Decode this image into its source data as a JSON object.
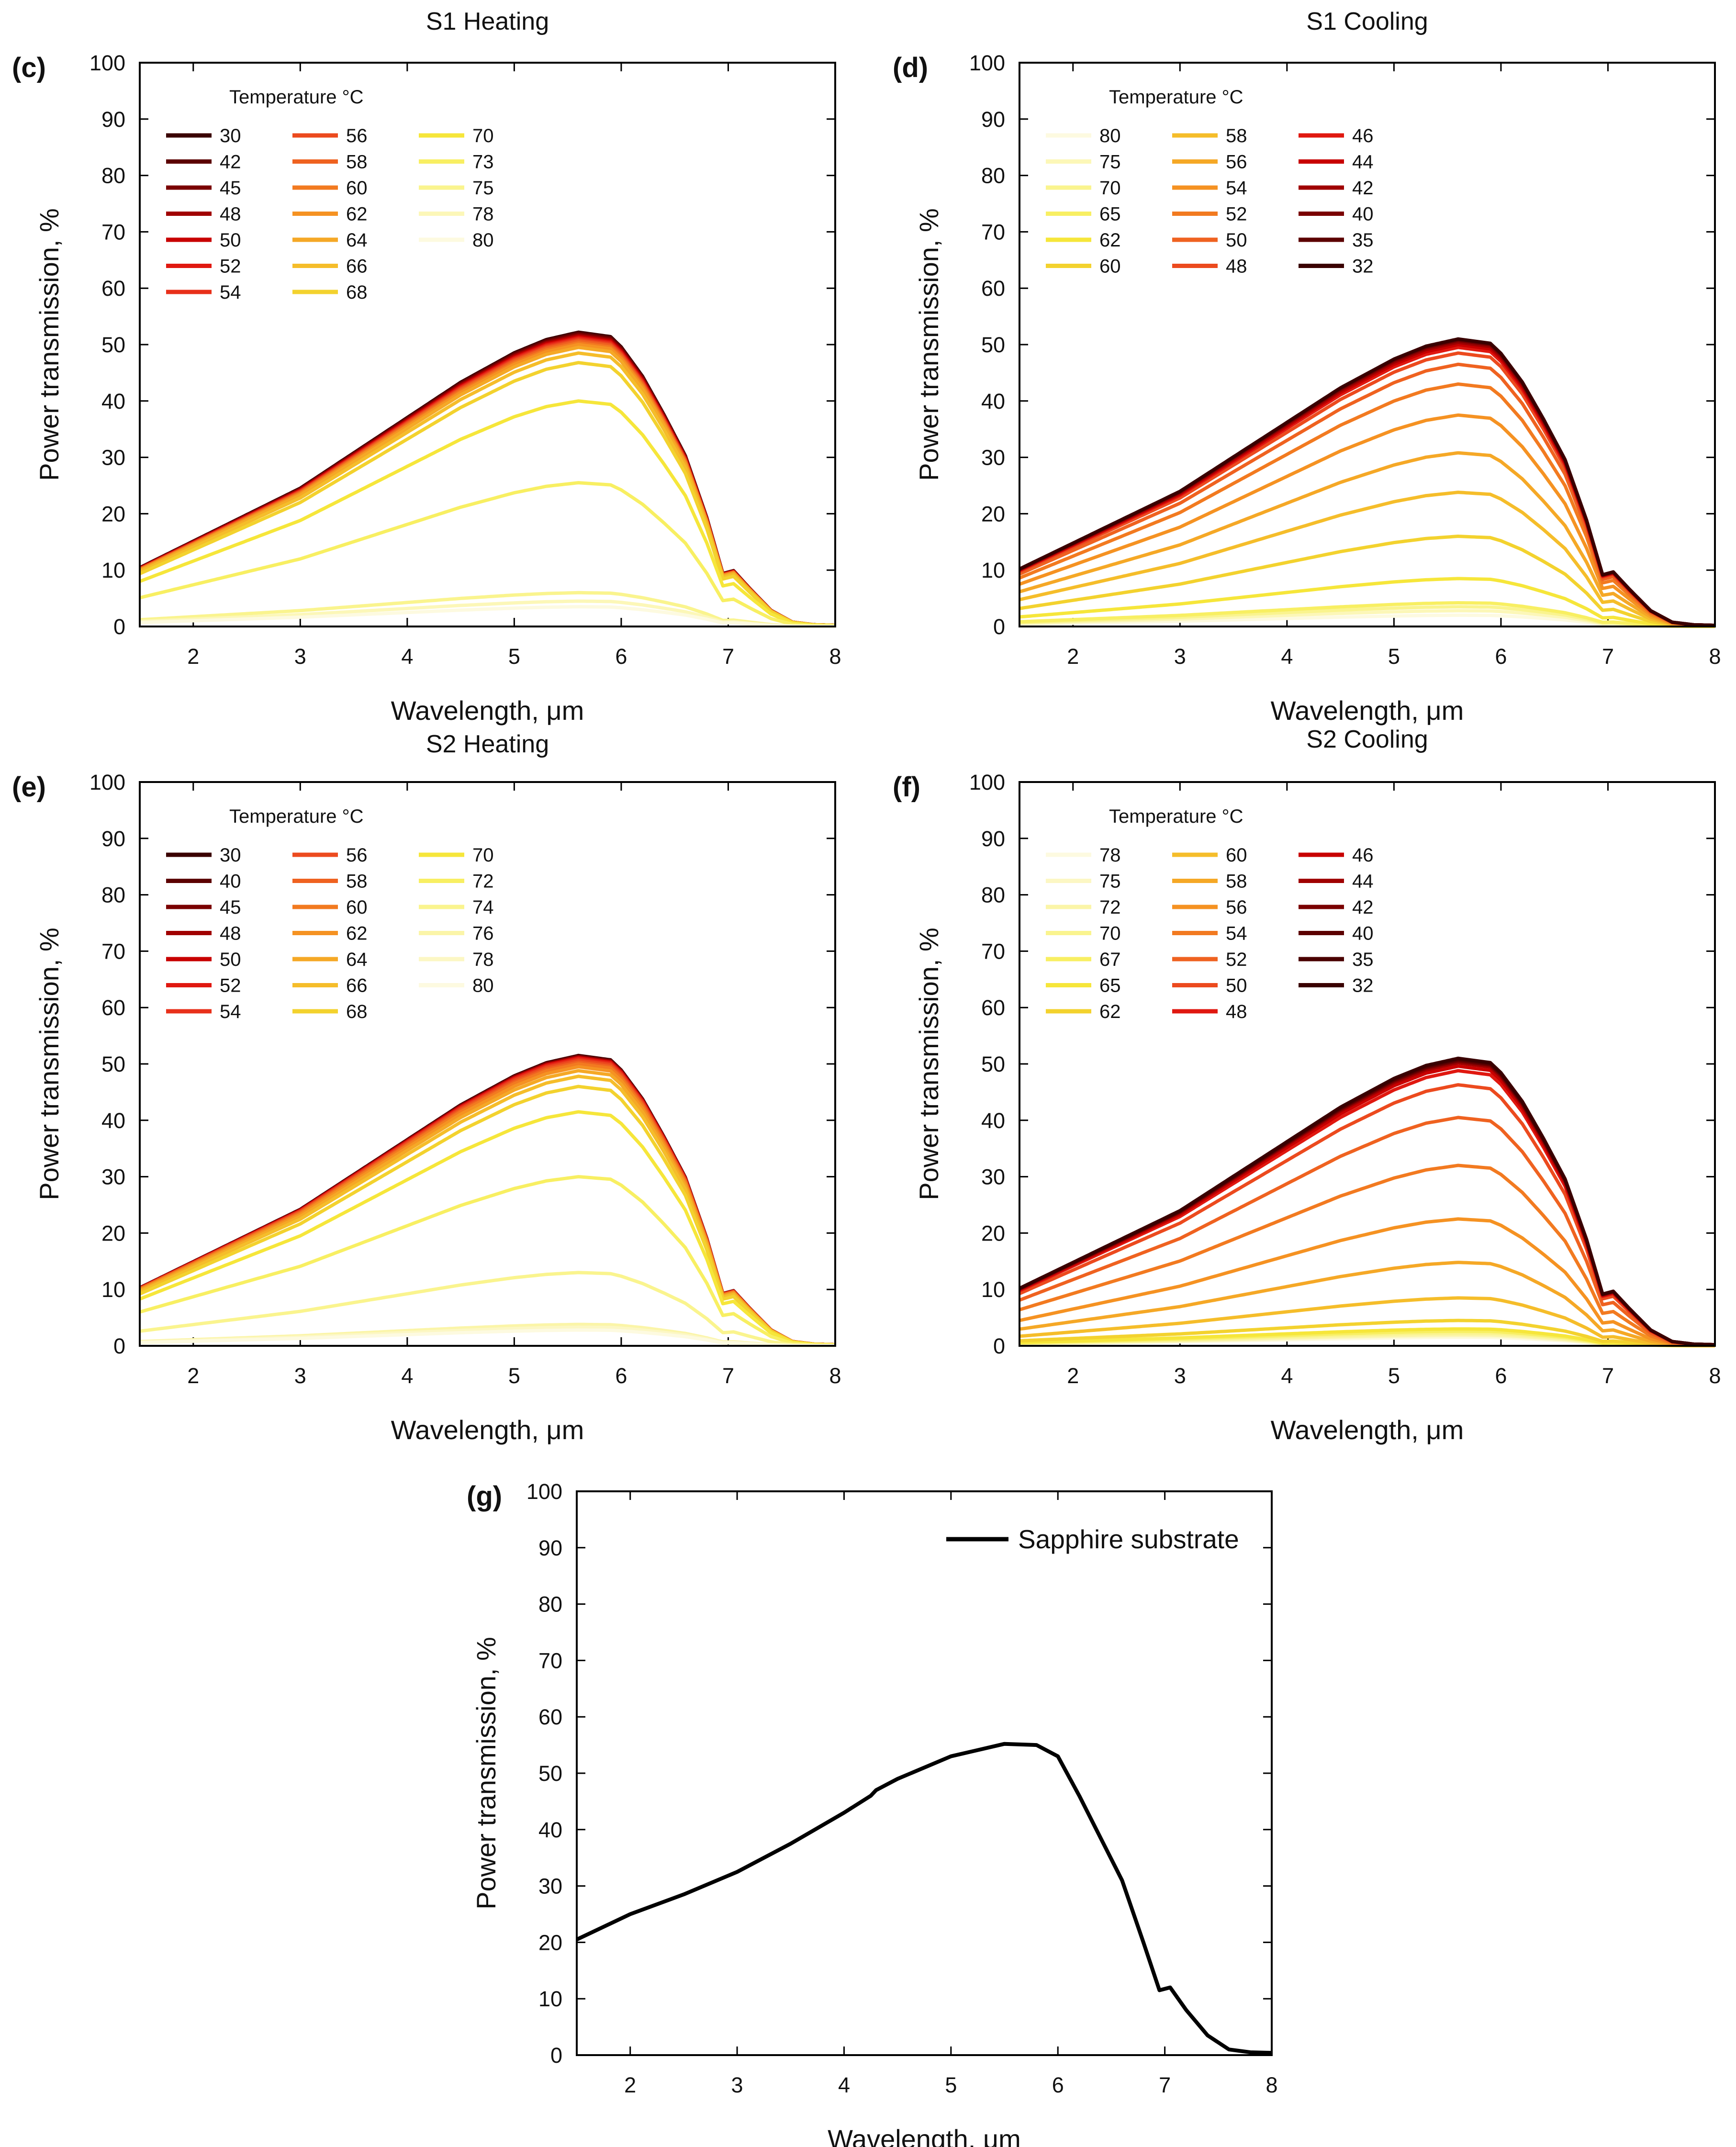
{
  "chart_data": [
    {
      "id": "c",
      "panel_label": "(c)",
      "title": "S1 Heating",
      "type": "line",
      "xlabel": "Wavelength, μm",
      "ylabel": "Power transmission, %",
      "xlim": [
        1.5,
        8
      ],
      "ylim": [
        0,
        100
      ],
      "xticks": [
        "2",
        "3",
        "4",
        "5",
        "6",
        "7",
        "8"
      ],
      "yticks": [
        "0",
        "10",
        "20",
        "30",
        "40",
        "50",
        "60",
        "70",
        "80",
        "90",
        "100"
      ],
      "legend_title": "Temperature °C",
      "legend_columns": 3,
      "legend_position": "top-left",
      "series": [
        {
          "name": "30",
          "color": "#3a0000",
          "peak": 52.2
        },
        {
          "name": "42",
          "color": "#5c0000",
          "peak": 52.0
        },
        {
          "name": "45",
          "color": "#7a0000",
          "peak": 51.8
        },
        {
          "name": "48",
          "color": "#a00000",
          "peak": 51.6
        },
        {
          "name": "50",
          "color": "#c80000",
          "peak": 51.4
        },
        {
          "name": "52",
          "color": "#e01810",
          "peak": 51.2
        },
        {
          "name": "54",
          "color": "#e8301a",
          "peak": 51.0
        },
        {
          "name": "56",
          "color": "#ec4a1e",
          "peak": 50.8
        },
        {
          "name": "58",
          "color": "#ef6220",
          "peak": 50.6
        },
        {
          "name": "60",
          "color": "#f27a20",
          "peak": 50.3
        },
        {
          "name": "62",
          "color": "#f59222",
          "peak": 50.0
        },
        {
          "name": "64",
          "color": "#f5a826",
          "peak": 49.5
        },
        {
          "name": "66",
          "color": "#f5bd2a",
          "peak": 48.5
        },
        {
          "name": "68",
          "color": "#f3d22e",
          "peak": 46.8
        },
        {
          "name": "70",
          "color": "#f6e63a",
          "peak": 40.0
        },
        {
          "name": "73",
          "color": "#f8ef62",
          "peak": 25.5
        },
        {
          "name": "75",
          "color": "#faf48e",
          "peak": 6.0
        },
        {
          "name": "78",
          "color": "#fcf7b8",
          "peak": 4.5
        },
        {
          "name": "80",
          "color": "#fdfae0",
          "peak": 3.5
        }
      ]
    },
    {
      "id": "d",
      "panel_label": "(d)",
      "title": "S1  Cooling",
      "type": "line",
      "xlabel": "Wavelength, μm",
      "ylabel": "Power transmission, %",
      "xlim": [
        1.5,
        8
      ],
      "ylim": [
        0,
        100
      ],
      "xticks": [
        "2",
        "3",
        "4",
        "5",
        "6",
        "7",
        "8"
      ],
      "yticks": [
        "0",
        "10",
        "20",
        "30",
        "40",
        "50",
        "60",
        "70",
        "80",
        "90",
        "100"
      ],
      "legend_title": "Temperature °C",
      "legend_columns": 3,
      "legend_position": "top-left",
      "series": [
        {
          "name": "80",
          "color": "#fdfae0",
          "peak": 2.0
        },
        {
          "name": "75",
          "color": "#fcf7b8",
          "peak": 2.8
        },
        {
          "name": "70",
          "color": "#faf48e",
          "peak": 3.5
        },
        {
          "name": "65",
          "color": "#f8ef62",
          "peak": 4.2
        },
        {
          "name": "62",
          "color": "#f6e63a",
          "peak": 8.5
        },
        {
          "name": "60",
          "color": "#f3d22e",
          "peak": 16.0
        },
        {
          "name": "58",
          "color": "#f5bd2a",
          "peak": 23.8
        },
        {
          "name": "56",
          "color": "#f5a826",
          "peak": 30.8
        },
        {
          "name": "54",
          "color": "#f59222",
          "peak": 37.5
        },
        {
          "name": "52",
          "color": "#f27a20",
          "peak": 43.0
        },
        {
          "name": "50",
          "color": "#ef6220",
          "peak": 46.5
        },
        {
          "name": "48",
          "color": "#ec4a1e",
          "peak": 48.5
        },
        {
          "name": "46",
          "color": "#e01810",
          "peak": 49.5
        },
        {
          "name": "44",
          "color": "#c80000",
          "peak": 50.0
        },
        {
          "name": "42",
          "color": "#a00000",
          "peak": 50.4
        },
        {
          "name": "40",
          "color": "#7a0000",
          "peak": 50.7
        },
        {
          "name": "35",
          "color": "#5c0000",
          "peak": 50.9
        },
        {
          "name": "32",
          "color": "#3a0000",
          "peak": 51.0
        }
      ]
    },
    {
      "id": "e",
      "panel_label": "(e)",
      "title": "S2 Heating",
      "type": "line",
      "xlabel": "Wavelength, μm",
      "ylabel": "Power transmission, %",
      "xlim": [
        1.5,
        8
      ],
      "ylim": [
        0,
        100
      ],
      "xticks": [
        "2",
        "3",
        "4",
        "5",
        "6",
        "7",
        "8"
      ],
      "yticks": [
        "0",
        "10",
        "20",
        "30",
        "40",
        "50",
        "60",
        "70",
        "80",
        "90",
        "100"
      ],
      "legend_title": "Temperature °C",
      "legend_columns": 3,
      "legend_position": "top-left",
      "series": [
        {
          "name": "30",
          "color": "#3a0000",
          "peak": 51.5
        },
        {
          "name": "40",
          "color": "#5c0000",
          "peak": 51.4
        },
        {
          "name": "45",
          "color": "#7a0000",
          "peak": 51.3
        },
        {
          "name": "48",
          "color": "#a00000",
          "peak": 51.2
        },
        {
          "name": "50",
          "color": "#c80000",
          "peak": 51.1
        },
        {
          "name": "52",
          "color": "#e01810",
          "peak": 51.0
        },
        {
          "name": "54",
          "color": "#e8301a",
          "peak": 50.8
        },
        {
          "name": "56",
          "color": "#ec4a1e",
          "peak": 50.6
        },
        {
          "name": "58",
          "color": "#ef6220",
          "peak": 50.3
        },
        {
          "name": "60",
          "color": "#f27a20",
          "peak": 50.0
        },
        {
          "name": "62",
          "color": "#f59222",
          "peak": 49.5
        },
        {
          "name": "64",
          "color": "#f5a826",
          "peak": 48.8
        },
        {
          "name": "66",
          "color": "#f5bd2a",
          "peak": 47.8
        },
        {
          "name": "68",
          "color": "#f3d22e",
          "peak": 46.0
        },
        {
          "name": "70",
          "color": "#f6e63a",
          "peak": 41.5
        },
        {
          "name": "72",
          "color": "#f8ef62",
          "peak": 30.0
        },
        {
          "name": "74",
          "color": "#faf48e",
          "peak": 13.0
        },
        {
          "name": "76",
          "color": "#fbf5a8",
          "peak": 3.8
        },
        {
          "name": "78",
          "color": "#fcf7c4",
          "peak": 3.3
        },
        {
          "name": "80",
          "color": "#fdfae0",
          "peak": 2.8
        }
      ]
    },
    {
      "id": "f",
      "panel_label": "(f)",
      "title": "S2 Cooling",
      "type": "line",
      "xlabel": "Wavelength, μm",
      "ylabel": "Power transmission, %",
      "xlim": [
        1.5,
        8
      ],
      "ylim": [
        0,
        100
      ],
      "xticks": [
        "2",
        "3",
        "4",
        "5",
        "6",
        "7",
        "8"
      ],
      "yticks": [
        "0",
        "10",
        "20",
        "30",
        "40",
        "50",
        "60",
        "70",
        "80",
        "90",
        "100"
      ],
      "legend_title": "Temperature °C",
      "legend_columns": 3,
      "legend_position": "top-left",
      "series": [
        {
          "name": "78",
          "color": "#fdfae0",
          "peak": 1.5
        },
        {
          "name": "75",
          "color": "#fcf7c4",
          "peak": 1.8
        },
        {
          "name": "72",
          "color": "#fbf5a8",
          "peak": 2.0
        },
        {
          "name": "70",
          "color": "#faf48e",
          "peak": 2.3
        },
        {
          "name": "67",
          "color": "#f8ef62",
          "peak": 2.6
        },
        {
          "name": "65",
          "color": "#f6e63a",
          "peak": 3.0
        },
        {
          "name": "62",
          "color": "#f3d22e",
          "peak": 4.5
        },
        {
          "name": "60",
          "color": "#f5bd2a",
          "peak": 8.5
        },
        {
          "name": "58",
          "color": "#f5a826",
          "peak": 14.8
        },
        {
          "name": "56",
          "color": "#f59222",
          "peak": 22.5
        },
        {
          "name": "54",
          "color": "#f27a20",
          "peak": 32.0
        },
        {
          "name": "52",
          "color": "#ef6220",
          "peak": 40.5
        },
        {
          "name": "50",
          "color": "#ec4a1e",
          "peak": 46.3
        },
        {
          "name": "48",
          "color": "#e01810",
          "peak": 48.8
        },
        {
          "name": "46",
          "color": "#c80000",
          "peak": 49.6
        },
        {
          "name": "44",
          "color": "#a00000",
          "peak": 50.2
        },
        {
          "name": "42",
          "color": "#7a0000",
          "peak": 50.5
        },
        {
          "name": "40",
          "color": "#5c0000",
          "peak": 50.7
        },
        {
          "name": "35",
          "color": "#4a0000",
          "peak": 50.9
        },
        {
          "name": "32",
          "color": "#3a0000",
          "peak": 51.0
        }
      ]
    },
    {
      "id": "g",
      "panel_label": "(g)",
      "title": "",
      "type": "line",
      "xlabel": "Wavelength, μm",
      "ylabel": "Power transmission, %",
      "xlim": [
        1.5,
        8
      ],
      "ylim": [
        0,
        100
      ],
      "xticks": [
        "2",
        "3",
        "4",
        "5",
        "6",
        "7",
        "8"
      ],
      "yticks": [
        "0",
        "10",
        "20",
        "30",
        "40",
        "50",
        "60",
        "70",
        "80",
        "90",
        "100"
      ],
      "legend_title": "",
      "legend_position": "top-right",
      "series": [
        {
          "name": "Sapphire substrate",
          "color": "#000000",
          "x": [
            1.5,
            2,
            2.5,
            3,
            3.5,
            4,
            4.25,
            4.3,
            4.5,
            5,
            5.5,
            5.8,
            6.0,
            6.2,
            6.4,
            6.6,
            6.8,
            6.95,
            7.05,
            7.2,
            7.4,
            7.6,
            7.8,
            8
          ],
          "y": [
            20.5,
            25,
            28.5,
            32.5,
            37.5,
            43,
            46,
            47,
            49,
            53,
            55.2,
            55,
            53,
            46,
            38.5,
            31,
            20,
            11.5,
            12,
            8,
            3.5,
            1,
            0.5,
            0.4
          ]
        }
      ]
    }
  ]
}
